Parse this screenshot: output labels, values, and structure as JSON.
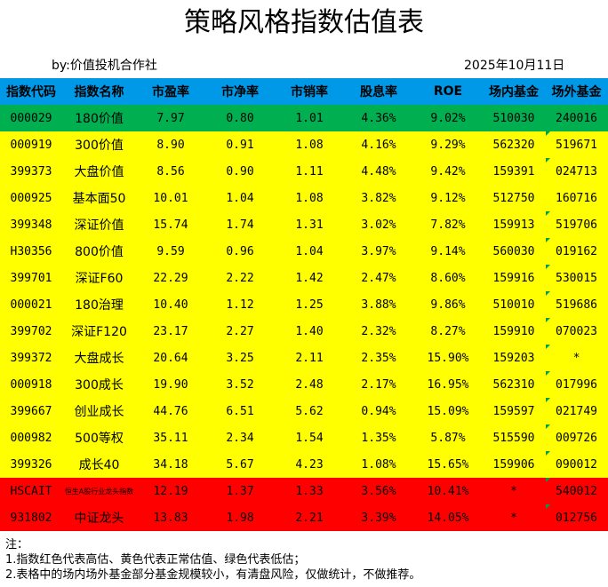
{
  "title": "策略风格指数估值表",
  "author": "by:价值投机合作社",
  "date": "2025年10月11日",
  "headers": [
    "指数代码",
    "指数名称",
    "市盈率",
    "市净率",
    "市销率",
    "股息率",
    "ROE",
    "场内基金",
    "场外基金"
  ],
  "colors": {
    "header": "#0099e8",
    "low": "#00b050",
    "normal": "#ffff00",
    "high": "#ff0000"
  },
  "rows": [
    {
      "level": "green",
      "code": "000029",
      "name": "180价值",
      "pe": "7.97",
      "pb": "0.80",
      "ps": "1.01",
      "dy": "4.36%",
      "roe": "9.02%",
      "etf": "510030",
      "otc": "240016"
    },
    {
      "level": "yellow",
      "code": "000919",
      "name": "300价值",
      "pe": "8.90",
      "pb": "0.91",
      "ps": "1.08",
      "dy": "4.16%",
      "roe": "9.29%",
      "etf": "562320",
      "otc": "519671"
    },
    {
      "level": "yellow",
      "code": "399373",
      "name": "大盘价值",
      "pe": "8.56",
      "pb": "0.90",
      "ps": "1.11",
      "dy": "4.48%",
      "roe": "9.42%",
      "etf": "159391",
      "otc": "024713"
    },
    {
      "level": "yellow",
      "code": "000925",
      "name": "基本面50",
      "pe": "10.01",
      "pb": "1.04",
      "ps": "1.08",
      "dy": "3.82%",
      "roe": "9.12%",
      "etf": "512750",
      "otc": "160716"
    },
    {
      "level": "yellow",
      "code": "399348",
      "name": "深证价值",
      "pe": "15.74",
      "pb": "1.74",
      "ps": "1.31",
      "dy": "3.02%",
      "roe": "7.82%",
      "etf": "159913",
      "otc": "519706"
    },
    {
      "level": "yellow",
      "code": "H30356",
      "name": "800价值",
      "pe": "9.59",
      "pb": "0.96",
      "ps": "1.04",
      "dy": "3.97%",
      "roe": "9.14%",
      "etf": "560030",
      "otc": "019162"
    },
    {
      "level": "yellow",
      "code": "399701",
      "name": "深证F60",
      "pe": "22.29",
      "pb": "2.22",
      "ps": "1.42",
      "dy": "2.47%",
      "roe": "8.60%",
      "etf": "159916",
      "otc": "530015"
    },
    {
      "level": "yellow",
      "code": "000021",
      "name": "180治理",
      "pe": "10.40",
      "pb": "1.12",
      "ps": "1.25",
      "dy": "3.88%",
      "roe": "9.86%",
      "etf": "510010",
      "otc": "519686"
    },
    {
      "level": "yellow",
      "code": "399702",
      "name": "深证F120",
      "pe": "23.17",
      "pb": "2.27",
      "ps": "1.40",
      "dy": "2.32%",
      "roe": "8.27%",
      "etf": "159910",
      "otc": "070023"
    },
    {
      "level": "yellow",
      "code": "399372",
      "name": "大盘成长",
      "pe": "20.64",
      "pb": "3.25",
      "ps": "2.11",
      "dy": "2.35%",
      "roe": "15.90%",
      "etf": "159203",
      "otc": "*"
    },
    {
      "level": "yellow",
      "code": "000918",
      "name": "300成长",
      "pe": "19.90",
      "pb": "3.52",
      "ps": "2.48",
      "dy": "2.17%",
      "roe": "16.95%",
      "etf": "562310",
      "otc": "017996"
    },
    {
      "level": "yellow",
      "code": "399667",
      "name": "创业成长",
      "pe": "44.76",
      "pb": "6.51",
      "ps": "5.62",
      "dy": "0.94%",
      "roe": "15.09%",
      "etf": "159597",
      "otc": "021749"
    },
    {
      "level": "yellow",
      "code": "000982",
      "name": "500等权",
      "pe": "35.11",
      "pb": "2.34",
      "ps": "1.54",
      "dy": "1.35%",
      "roe": "5.87%",
      "etf": "515590",
      "otc": "009726"
    },
    {
      "level": "yellow",
      "code": "399326",
      "name": "成长40",
      "pe": "34.18",
      "pb": "5.67",
      "ps": "4.23",
      "dy": "1.08%",
      "roe": "15.65%",
      "etf": "159906",
      "otc": "090012"
    },
    {
      "level": "red",
      "code": "HSCAIT",
      "name": "恒生A股行业龙头指数",
      "pe": "12.19",
      "pb": "1.37",
      "ps": "1.33",
      "dy": "3.56%",
      "roe": "10.41%",
      "etf": "*",
      "otc": "540012"
    },
    {
      "level": "red",
      "code": "931802",
      "name": "中证龙头",
      "pe": "13.83",
      "pb": "1.98",
      "ps": "2.21",
      "dy": "3.39%",
      "roe": "14.05%",
      "etf": "*",
      "otc": "012756"
    }
  ],
  "notes": {
    "label": "注：",
    "line1": "1.指数红色代表高估、黄色代表正常估值、绿色代表低估；",
    "line2": "2.表格中的场内场外基金部分基金规模较小，有清盘风险，仅做统计，不做推荐。"
  }
}
